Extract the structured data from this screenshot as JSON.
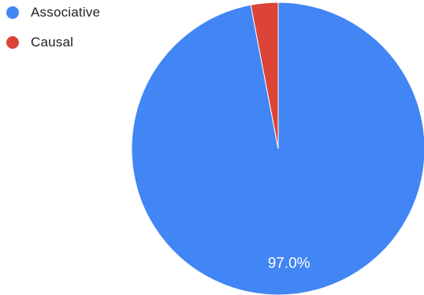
{
  "chart_data": {
    "type": "pie",
    "title": "",
    "legend_position": "top-left",
    "slices": [
      {
        "label": "Associative",
        "value": 97.0,
        "color": "#4285f4",
        "data_label": "97.0%"
      },
      {
        "label": "Causal",
        "value": 3.0,
        "color": "#db4437",
        "data_label": ""
      }
    ]
  }
}
